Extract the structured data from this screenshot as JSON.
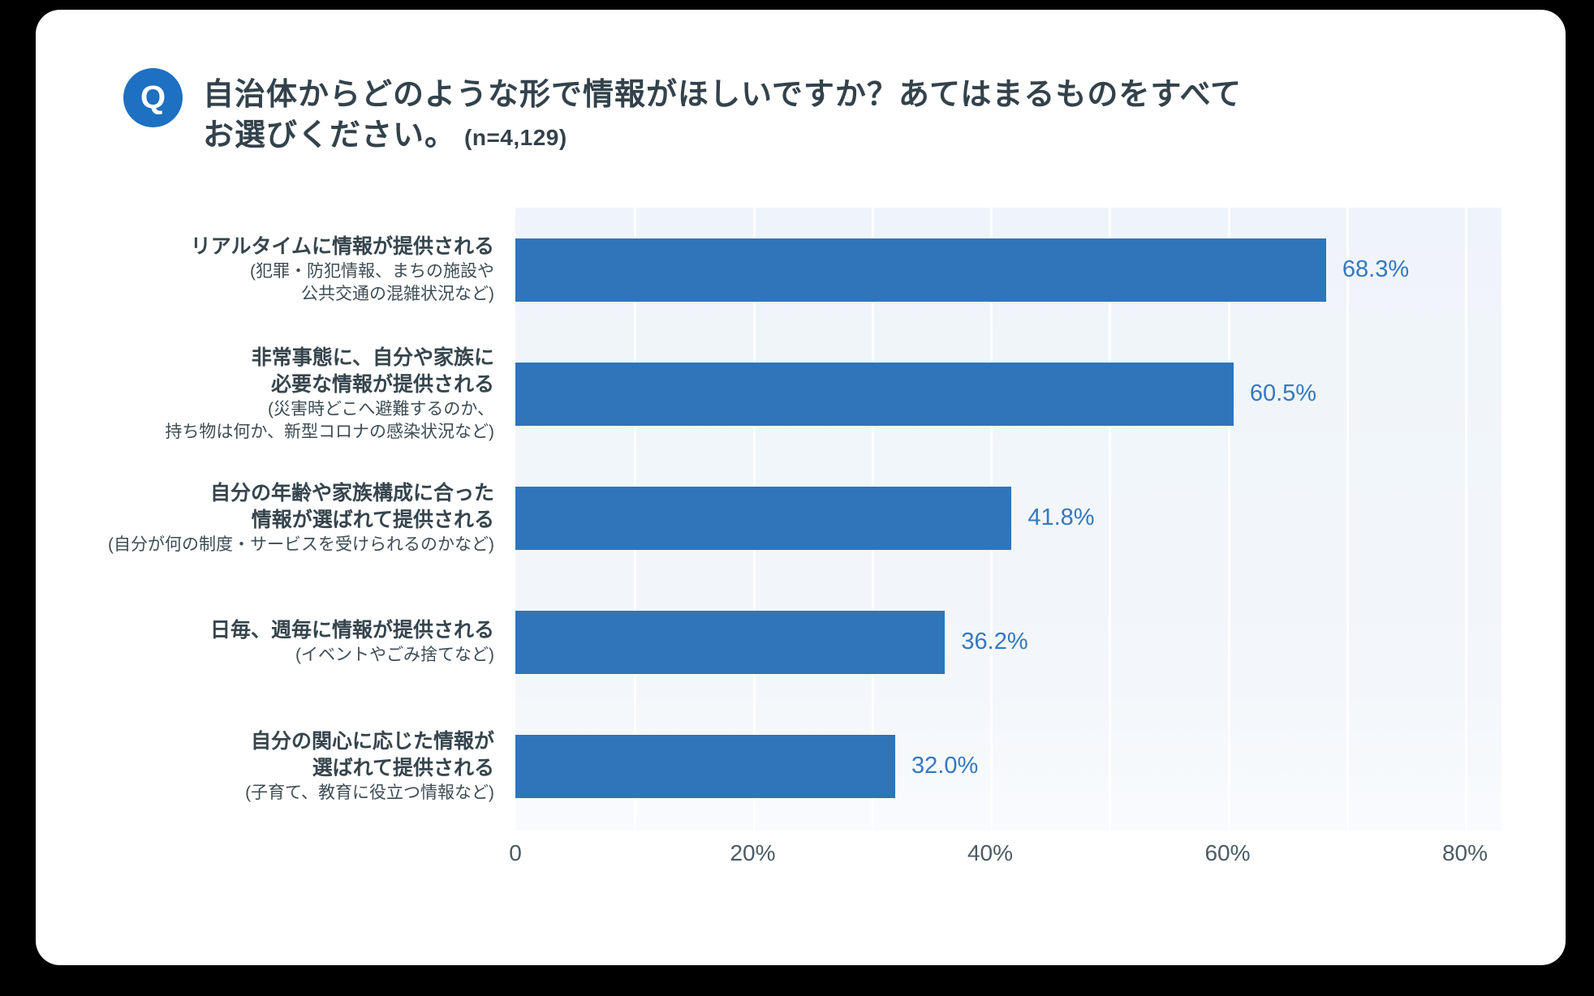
{
  "header": {
    "q_badge": "Q",
    "title_line1": "自治体からどのような形で情報がほしいですか？あてはまるものをすべて",
    "title_line2": "お選びください。",
    "n_note": "(n=4,129)"
  },
  "chart_data": {
    "type": "bar",
    "orientation": "horizontal",
    "title": "自治体からどのような形で情報がほしいですか？あてはまるものをすべてお選びください。(n=4,129)",
    "xlim": [
      0,
      80
    ],
    "x_ticks": [
      "0",
      "20%",
      "40%",
      "60%",
      "80%"
    ],
    "x_tick_values": [
      0,
      20,
      40,
      60,
      80
    ],
    "gridline_interval_pct": 10,
    "grid": true,
    "legend": false,
    "categories": [
      {
        "main": [
          "リアルタイムに情報が提供される"
        ],
        "sub": [
          "(犯罪・防犯情報、まちの施設や",
          "公共交通の混雑状況など)"
        ]
      },
      {
        "main": [
          "非常事態に、自分や家族に",
          "必要な情報が提供される"
        ],
        "sub": [
          "(災害時どこへ避難するのか、",
          "持ち物は何か、新型コロナの感染状況など)"
        ]
      },
      {
        "main": [
          "自分の年齢や家族構成に合った",
          "情報が選ばれて提供される"
        ],
        "sub": [
          "(自分が何の制度・サービスを受けられるのかなど)"
        ]
      },
      {
        "main": [
          "日毎、週毎に情報が提供される"
        ],
        "sub": [
          "(イベントやごみ捨てなど)"
        ]
      },
      {
        "main": [
          "自分の関心に応じた情報が",
          "選ばれて提供される"
        ],
        "sub": [
          "(子育て、教育に役立つ情報など)"
        ]
      }
    ],
    "values": [
      68.3,
      60.5,
      41.8,
      36.2,
      32.0
    ],
    "value_labels": [
      "68.3%",
      "60.5%",
      "41.8%",
      "36.2%",
      "32.0%"
    ],
    "colors": {
      "bar": "#2e75ba",
      "value_label": "#3478bf",
      "plot_background": "#f1f6fa",
      "gridline": "#ffffff",
      "q_badge_background": "#1d70c2",
      "title_text": "#33424b",
      "category_text": "#36454d",
      "axis_text": "#4b5b64",
      "card_background": "#ffffff",
      "page_background": "#000000"
    }
  }
}
